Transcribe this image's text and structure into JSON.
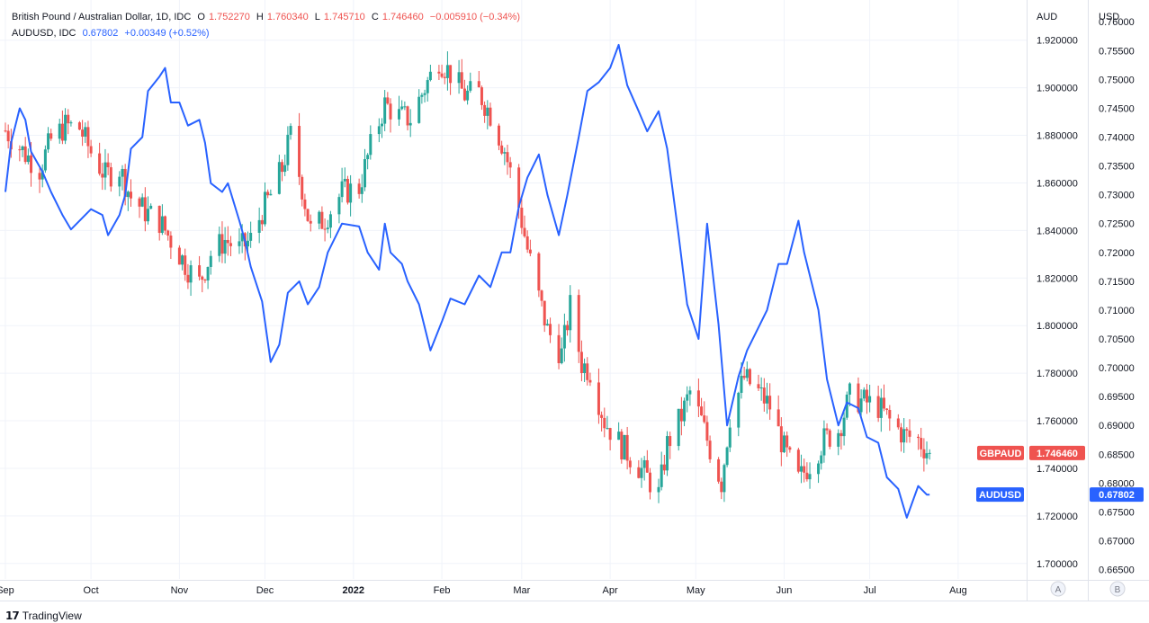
{
  "header": {
    "main_symbol": "British Pound / Australian Dollar, 1D, IDC",
    "ohlc": [
      {
        "k": "O",
        "v": "1.752270"
      },
      {
        "k": "H",
        "v": "1.760340"
      },
      {
        "k": "L",
        "v": "1.745710"
      },
      {
        "k": "C",
        "v": "1.746460"
      }
    ],
    "change": "−0.005910 (−0.34%)",
    "compare_symbol": "AUDUSD, IDC",
    "compare_value": "0.67802",
    "compare_change": "+0.00349 (+0.52%)"
  },
  "footer": {
    "brand": "TradingView"
  },
  "colors": {
    "up": "#26a69a",
    "down": "#ef5350",
    "line": "#2962ff",
    "grid": "#f0f3fa",
    "text": "#131722"
  },
  "chart_data": {
    "type": "candlestick+line",
    "axis_left_scale": {
      "label": "AUD",
      "range": [
        1.695,
        1.935
      ],
      "ticks": [
        "1.920000",
        "1.900000",
        "1.880000",
        "1.860000",
        "1.840000",
        "1.820000",
        "1.800000",
        "1.780000",
        "1.760000",
        "1.740000",
        "1.720000",
        "1.700000"
      ]
    },
    "axis_right_scale": {
      "label": "USD",
      "range": [
        0.664,
        0.763
      ],
      "ticks": [
        "0.76000",
        "0.75500",
        "0.75000",
        "0.74500",
        "0.74000",
        "0.73500",
        "0.73000",
        "0.72500",
        "0.72000",
        "0.71500",
        "0.71000",
        "0.70500",
        "0.70000",
        "0.69500",
        "0.69000",
        "0.68500",
        "0.68000",
        "0.67500",
        "0.67000",
        "0.66500"
      ]
    },
    "x_axis": {
      "ticks": [
        {
          "label": "Sep",
          "date": "2021-09-01"
        },
        {
          "label": "Oct",
          "date": "2021-10-01"
        },
        {
          "label": "Nov",
          "date": "2021-11-01"
        },
        {
          "label": "Dec",
          "date": "2021-12-01"
        },
        {
          "label": "2022",
          "date": "2022-01-01"
        },
        {
          "label": "Feb",
          "date": "2022-02-01"
        },
        {
          "label": "Mar",
          "date": "2022-03-01"
        },
        {
          "label": "Apr",
          "date": "2022-04-01"
        },
        {
          "label": "May",
          "date": "2022-05-01"
        },
        {
          "label": "Jun",
          "date": "2022-06-01"
        },
        {
          "label": "Jul",
          "date": "2022-07-01"
        },
        {
          "label": "Aug",
          "date": "2022-08-01"
        }
      ],
      "range": [
        "2021-09-01",
        "2022-08-25"
      ]
    },
    "series": [
      {
        "name": "GBPAUD",
        "kind": "candlestick",
        "last_value": "1.746460",
        "points": [
          [
            "2021-09-01",
            1.882
          ],
          [
            "2021-09-08",
            1.872
          ],
          [
            "2021-09-13",
            1.866
          ],
          [
            "2021-09-17",
            1.878
          ],
          [
            "2021-09-22",
            1.884
          ],
          [
            "2021-09-27",
            1.883
          ],
          [
            "2021-10-01",
            1.873
          ],
          [
            "2021-10-06",
            1.863
          ],
          [
            "2021-10-11",
            1.866
          ],
          [
            "2021-10-15",
            1.854
          ],
          [
            "2021-10-20",
            1.848
          ],
          [
            "2021-10-25",
            1.844
          ],
          [
            "2021-10-29",
            1.836
          ],
          [
            "2021-11-04",
            1.824
          ],
          [
            "2021-11-08",
            1.818
          ],
          [
            "2021-11-12",
            1.83
          ],
          [
            "2021-11-17",
            1.836
          ],
          [
            "2021-11-22",
            1.832
          ],
          [
            "2021-11-26",
            1.836
          ],
          [
            "2021-11-30",
            1.848
          ],
          [
            "2021-12-03",
            1.855
          ],
          [
            "2021-12-07",
            1.866
          ],
          [
            "2021-12-10",
            1.88
          ],
          [
            "2021-12-14",
            1.858
          ],
          [
            "2021-12-17",
            1.84
          ],
          [
            "2021-12-22",
            1.845
          ],
          [
            "2021-12-28",
            1.856
          ],
          [
            "2022-01-03",
            1.858
          ],
          [
            "2022-01-07",
            1.875
          ],
          [
            "2022-01-12",
            1.893
          ],
          [
            "2022-01-17",
            1.888
          ],
          [
            "2022-01-21",
            1.887
          ],
          [
            "2022-01-26",
            1.9
          ],
          [
            "2022-01-31",
            1.912
          ],
          [
            "2022-02-04",
            1.906
          ],
          [
            "2022-02-09",
            1.897
          ],
          [
            "2022-02-14",
            1.898
          ],
          [
            "2022-02-18",
            1.889
          ],
          [
            "2022-02-23",
            1.874
          ],
          [
            "2022-02-28",
            1.85
          ],
          [
            "2022-03-03",
            1.832
          ],
          [
            "2022-03-07",
            1.812
          ],
          [
            "2022-03-10",
            1.798
          ],
          [
            "2022-03-15",
            1.788
          ],
          [
            "2022-03-18",
            1.808
          ],
          [
            "2022-03-22",
            1.784
          ],
          [
            "2022-03-25",
            1.781
          ],
          [
            "2022-03-30",
            1.76
          ],
          [
            "2022-04-04",
            1.751
          ],
          [
            "2022-04-08",
            1.745
          ],
          [
            "2022-04-13",
            1.738
          ],
          [
            "2022-04-18",
            1.729
          ],
          [
            "2022-04-21",
            1.75
          ],
          [
            "2022-04-26",
            1.762
          ],
          [
            "2022-04-29",
            1.772
          ],
          [
            "2022-05-03",
            1.76
          ],
          [
            "2022-05-06",
            1.748
          ],
          [
            "2022-05-10",
            1.734
          ],
          [
            "2022-05-13",
            1.762
          ],
          [
            "2022-05-18",
            1.778
          ],
          [
            "2022-05-23",
            1.772
          ],
          [
            "2022-05-27",
            1.766
          ],
          [
            "2022-06-01",
            1.748
          ],
          [
            "2022-06-06",
            1.735
          ],
          [
            "2022-06-10",
            1.742
          ],
          [
            "2022-06-15",
            1.752
          ],
          [
            "2022-06-20",
            1.756
          ],
          [
            "2022-06-24",
            1.77
          ],
          [
            "2022-06-29",
            1.768
          ],
          [
            "2022-07-04",
            1.766
          ],
          [
            "2022-07-08",
            1.76
          ],
          [
            "2022-07-13",
            1.754
          ],
          [
            "2022-07-18",
            1.752
          ],
          [
            "2022-07-22",
            1.746
          ]
        ]
      },
      {
        "name": "AUDUSD",
        "kind": "line",
        "last_value": "0.67802",
        "points": [
          [
            "2021-09-01",
            0.7305
          ],
          [
            "2021-09-03",
            0.739
          ],
          [
            "2021-09-06",
            0.745
          ],
          [
            "2021-09-08",
            0.743
          ],
          [
            "2021-09-10",
            0.7375
          ],
          [
            "2021-09-14",
            0.734
          ],
          [
            "2021-09-17",
            0.7305
          ],
          [
            "2021-09-21",
            0.7265
          ],
          [
            "2021-09-24",
            0.724
          ],
          [
            "2021-09-28",
            0.726
          ],
          [
            "2021-10-01",
            0.7275
          ],
          [
            "2021-10-05",
            0.7265
          ],
          [
            "2021-10-07",
            0.723
          ],
          [
            "2021-10-11",
            0.7265
          ],
          [
            "2021-10-13",
            0.73
          ],
          [
            "2021-10-15",
            0.738
          ],
          [
            "2021-10-19",
            0.74
          ],
          [
            "2021-10-21",
            0.748
          ],
          [
            "2021-10-25",
            0.7505
          ],
          [
            "2021-10-27",
            0.752
          ],
          [
            "2021-10-29",
            0.746
          ],
          [
            "2021-11-01",
            0.746
          ],
          [
            "2021-11-04",
            0.742
          ],
          [
            "2021-11-08",
            0.743
          ],
          [
            "2021-11-10",
            0.739
          ],
          [
            "2021-11-12",
            0.732
          ],
          [
            "2021-11-16",
            0.7305
          ],
          [
            "2021-11-18",
            0.732
          ],
          [
            "2021-11-22",
            0.7255
          ],
          [
            "2021-11-24",
            0.722
          ],
          [
            "2021-11-26",
            0.7175
          ],
          [
            "2021-11-30",
            0.7115
          ],
          [
            "2021-12-03",
            0.701
          ],
          [
            "2021-12-06",
            0.704
          ],
          [
            "2021-12-09",
            0.713
          ],
          [
            "2021-12-13",
            0.715
          ],
          [
            "2021-12-16",
            0.711
          ],
          [
            "2021-12-20",
            0.714
          ],
          [
            "2021-12-23",
            0.72
          ],
          [
            "2021-12-28",
            0.725
          ],
          [
            "2022-01-03",
            0.7245
          ],
          [
            "2022-01-06",
            0.72
          ],
          [
            "2022-01-10",
            0.717
          ],
          [
            "2022-01-12",
            0.725
          ],
          [
            "2022-01-14",
            0.72
          ],
          [
            "2022-01-18",
            0.718
          ],
          [
            "2022-01-20",
            0.715
          ],
          [
            "2022-01-24",
            0.711
          ],
          [
            "2022-01-28",
            0.703
          ],
          [
            "2022-02-01",
            0.708
          ],
          [
            "2022-02-04",
            0.712
          ],
          [
            "2022-02-09",
            0.711
          ],
          [
            "2022-02-14",
            0.716
          ],
          [
            "2022-02-18",
            0.714
          ],
          [
            "2022-02-22",
            0.72
          ],
          [
            "2022-02-25",
            0.72
          ],
          [
            "2022-02-28",
            0.728
          ],
          [
            "2022-03-03",
            0.733
          ],
          [
            "2022-03-07",
            0.737
          ],
          [
            "2022-03-10",
            0.73
          ],
          [
            "2022-03-14",
            0.723
          ],
          [
            "2022-03-17",
            0.73
          ],
          [
            "2022-03-21",
            0.74
          ],
          [
            "2022-03-24",
            0.748
          ],
          [
            "2022-03-28",
            0.7495
          ],
          [
            "2022-04-01",
            0.752
          ],
          [
            "2022-04-04",
            0.756
          ],
          [
            "2022-04-07",
            0.749
          ],
          [
            "2022-04-11",
            0.7445
          ],
          [
            "2022-04-14",
            0.741
          ],
          [
            "2022-04-18",
            0.7445
          ],
          [
            "2022-04-21",
            0.738
          ],
          [
            "2022-04-25",
            0.723
          ],
          [
            "2022-04-28",
            0.711
          ],
          [
            "2022-05-02",
            0.705
          ],
          [
            "2022-05-05",
            0.725
          ],
          [
            "2022-05-09",
            0.7075
          ],
          [
            "2022-05-12",
            0.69
          ],
          [
            "2022-05-16",
            0.6985
          ],
          [
            "2022-05-19",
            0.703
          ],
          [
            "2022-05-23",
            0.707
          ],
          [
            "2022-05-26",
            0.71
          ],
          [
            "2022-05-30",
            0.718
          ],
          [
            "2022-06-02",
            0.718
          ],
          [
            "2022-06-06",
            0.7255
          ],
          [
            "2022-06-08",
            0.72
          ],
          [
            "2022-06-13",
            0.71
          ],
          [
            "2022-06-16",
            0.698
          ],
          [
            "2022-06-20",
            0.69
          ],
          [
            "2022-06-23",
            0.694
          ],
          [
            "2022-06-27",
            0.693
          ],
          [
            "2022-06-30",
            0.688
          ],
          [
            "2022-07-04",
            0.687
          ],
          [
            "2022-07-07",
            0.681
          ],
          [
            "2022-07-11",
            0.679
          ],
          [
            "2022-07-14",
            0.674
          ],
          [
            "2022-07-18",
            0.6795
          ],
          [
            "2022-07-21",
            0.678
          ],
          [
            "2022-07-22",
            0.678
          ]
        ]
      }
    ]
  }
}
